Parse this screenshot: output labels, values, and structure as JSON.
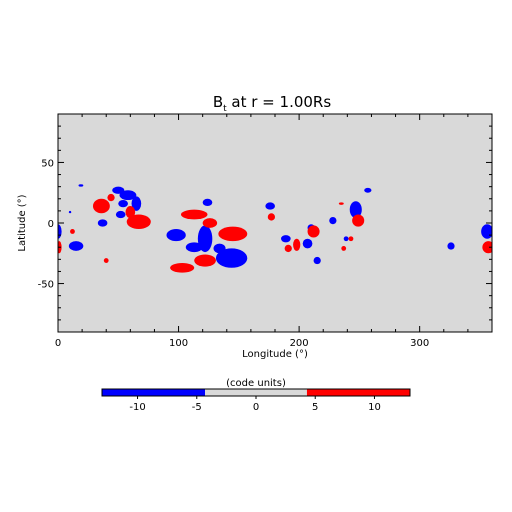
{
  "chart_data": {
    "type": "heatmap",
    "title_main": "B",
    "title_sub": "t",
    "title_rest": " at r = 1.00Rs",
    "xlabel": "Longitude (°)",
    "ylabel": "Latitude (°)",
    "xlim": [
      0,
      360
    ],
    "ylim": [
      -90,
      90
    ],
    "xticks": [
      0,
      100,
      200,
      300
    ],
    "yticks": [
      -50,
      0,
      50
    ],
    "grid": false,
    "colorbar": {
      "label": "(code units)",
      "range": [
        -13,
        13
      ],
      "ticks": [
        -10,
        -5,
        0,
        5,
        10
      ],
      "bins": [
        {
          "from": -13,
          "to": -4.3,
          "color": "#0000ff"
        },
        {
          "from": -4.3,
          "to": 4.3,
          "color": "#d9d9d9"
        },
        {
          "from": 4.3,
          "to": 13,
          "color": "#ff0000"
        }
      ]
    },
    "background_color": "#d9d9d9",
    "positive_color": "#ff0000",
    "negative_color": "#0000ff",
    "regions": [
      {
        "sign": "negative",
        "lon": 50,
        "lat": 27,
        "rx": 5,
        "ry": 3
      },
      {
        "sign": "negative",
        "lon": 58,
        "lat": 23,
        "rx": 7,
        "ry": 4
      },
      {
        "sign": "negative",
        "lon": 65,
        "lat": 16,
        "rx": 4,
        "ry": 6
      },
      {
        "sign": "negative",
        "lon": 54,
        "lat": 16,
        "rx": 4,
        "ry": 3
      },
      {
        "sign": "negative",
        "lon": 52,
        "lat": 7,
        "rx": 4,
        "ry": 3
      },
      {
        "sign": "negative",
        "lon": 37,
        "lat": 0,
        "rx": 4,
        "ry": 3
      },
      {
        "sign": "negative",
        "lon": 15,
        "lat": -19,
        "rx": 6,
        "ry": 4
      },
      {
        "sign": "negative",
        "lon": 0,
        "lat": -7,
        "rx": 3,
        "ry": 6
      },
      {
        "sign": "negative",
        "lon": 10,
        "lat": 9,
        "rx": 1,
        "ry": 1
      },
      {
        "sign": "negative",
        "lon": 19,
        "lat": 31,
        "rx": 2,
        "ry": 1
      },
      {
        "sign": "negative",
        "lon": 98,
        "lat": -10,
        "rx": 8,
        "ry": 5
      },
      {
        "sign": "negative",
        "lon": 122,
        "lat": -13,
        "rx": 6,
        "ry": 11
      },
      {
        "sign": "negative",
        "lon": 113,
        "lat": -20,
        "rx": 7,
        "ry": 4
      },
      {
        "sign": "negative",
        "lon": 124,
        "lat": 17,
        "rx": 4,
        "ry": 3
      },
      {
        "sign": "negative",
        "lon": 144,
        "lat": -29,
        "rx": 13,
        "ry": 8
      },
      {
        "sign": "negative",
        "lon": 134,
        "lat": -21,
        "rx": 5,
        "ry": 4
      },
      {
        "sign": "negative",
        "lon": 176,
        "lat": 14,
        "rx": 4,
        "ry": 3
      },
      {
        "sign": "negative",
        "lon": 189,
        "lat": -13,
        "rx": 4,
        "ry": 3
      },
      {
        "sign": "negative",
        "lon": 207,
        "lat": -17,
        "rx": 4,
        "ry": 4
      },
      {
        "sign": "negative",
        "lon": 215,
        "lat": -31,
        "rx": 3,
        "ry": 3
      },
      {
        "sign": "negative",
        "lon": 210,
        "lat": -4,
        "rx": 3,
        "ry": 3
      },
      {
        "sign": "negative",
        "lon": 228,
        "lat": 2,
        "rx": 3,
        "ry": 3
      },
      {
        "sign": "negative",
        "lon": 247,
        "lat": 11,
        "rx": 5,
        "ry": 7
      },
      {
        "sign": "negative",
        "lon": 239,
        "lat": -13,
        "rx": 2,
        "ry": 2
      },
      {
        "sign": "negative",
        "lon": 257,
        "lat": 27,
        "rx": 3,
        "ry": 2
      },
      {
        "sign": "negative",
        "lon": 326,
        "lat": -19,
        "rx": 3,
        "ry": 3
      },
      {
        "sign": "negative",
        "lon": 356,
        "lat": -7,
        "rx": 5,
        "ry": 6
      },
      {
        "sign": "positive",
        "lon": 36,
        "lat": 14,
        "rx": 7,
        "ry": 6
      },
      {
        "sign": "positive",
        "lon": 44,
        "lat": 21,
        "rx": 3,
        "ry": 3
      },
      {
        "sign": "positive",
        "lon": 60,
        "lat": 9,
        "rx": 4,
        "ry": 5
      },
      {
        "sign": "positive",
        "lon": 67,
        "lat": 1,
        "rx": 10,
        "ry": 6
      },
      {
        "sign": "positive",
        "lon": 12,
        "lat": -7,
        "rx": 2,
        "ry": 2
      },
      {
        "sign": "positive",
        "lon": 1,
        "lat": -20,
        "rx": 2,
        "ry": 5
      },
      {
        "sign": "positive",
        "lon": 40,
        "lat": -31,
        "rx": 2,
        "ry": 2
      },
      {
        "sign": "positive",
        "lon": 113,
        "lat": 7,
        "rx": 11,
        "ry": 4
      },
      {
        "sign": "positive",
        "lon": 126,
        "lat": 0,
        "rx": 6,
        "ry": 4
      },
      {
        "sign": "positive",
        "lon": 145,
        "lat": -9,
        "rx": 12,
        "ry": 6
      },
      {
        "sign": "positive",
        "lon": 103,
        "lat": -37,
        "rx": 10,
        "ry": 4
      },
      {
        "sign": "positive",
        "lon": 122,
        "lat": -31,
        "rx": 9,
        "ry": 5
      },
      {
        "sign": "positive",
        "lon": 177,
        "lat": 5,
        "rx": 3,
        "ry": 3
      },
      {
        "sign": "positive",
        "lon": 198,
        "lat": -18,
        "rx": 3,
        "ry": 5
      },
      {
        "sign": "positive",
        "lon": 191,
        "lat": -21,
        "rx": 3,
        "ry": 3
      },
      {
        "sign": "positive",
        "lon": 212,
        "lat": -7,
        "rx": 5,
        "ry": 5
      },
      {
        "sign": "positive",
        "lon": 235,
        "lat": 16,
        "rx": 2,
        "ry": 1
      },
      {
        "sign": "positive",
        "lon": 249,
        "lat": 2,
        "rx": 5,
        "ry": 5
      },
      {
        "sign": "positive",
        "lon": 243,
        "lat": -13,
        "rx": 2,
        "ry": 2
      },
      {
        "sign": "positive",
        "lon": 237,
        "lat": -21,
        "rx": 2,
        "ry": 2
      },
      {
        "sign": "positive",
        "lon": 357,
        "lat": -20,
        "rx": 5,
        "ry": 5
      }
    ]
  }
}
